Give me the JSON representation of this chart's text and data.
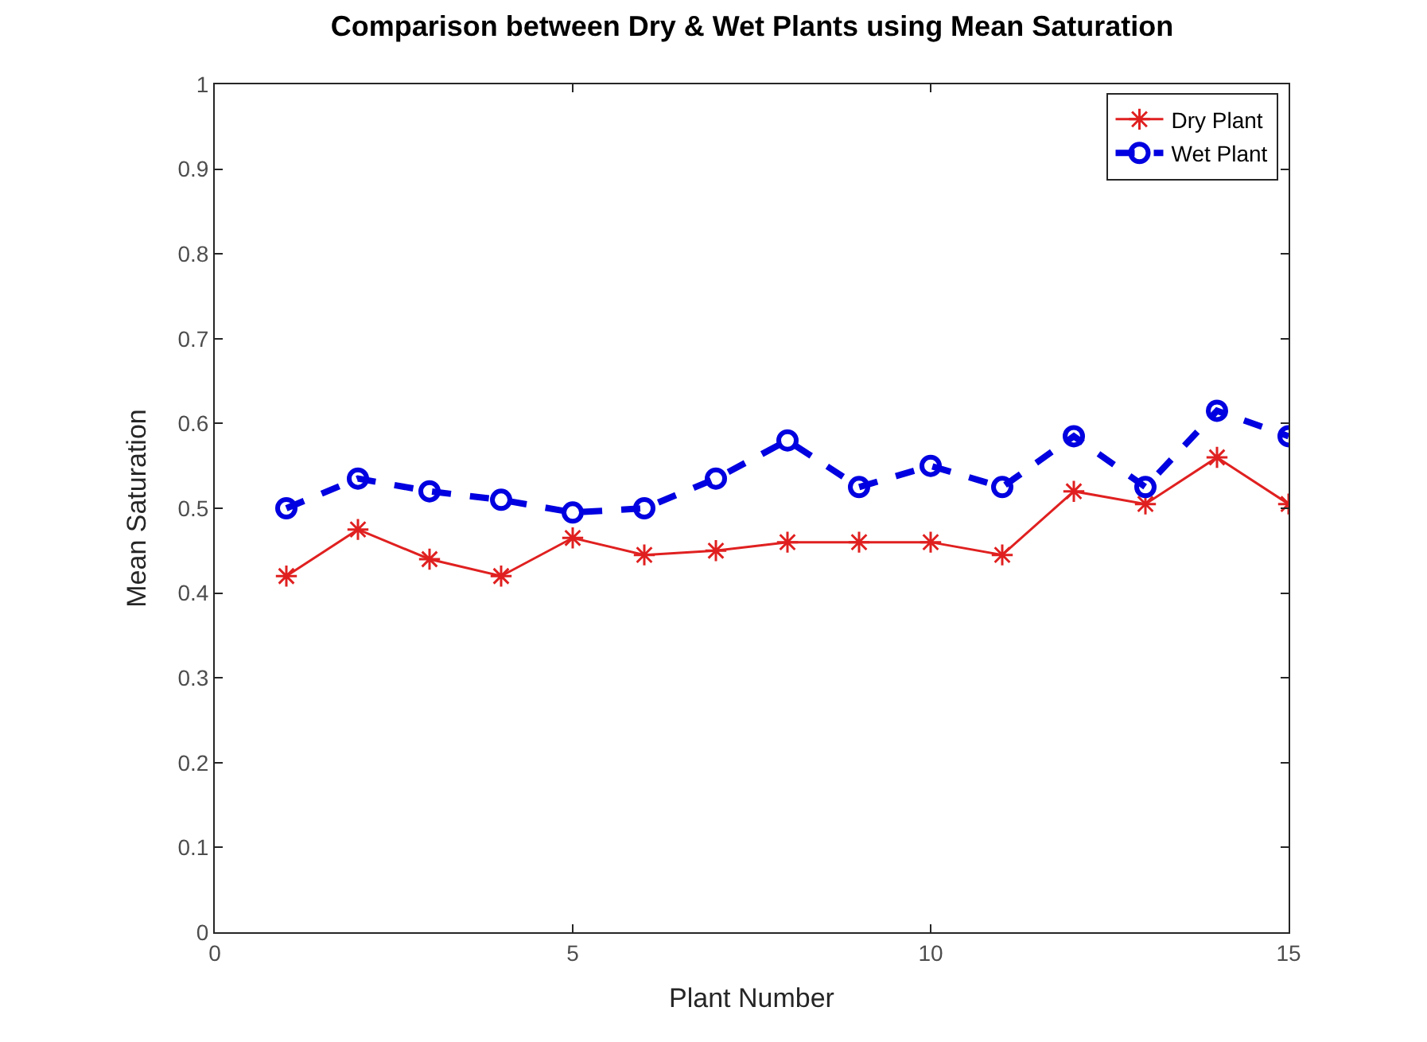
{
  "chart_data": {
    "type": "line",
    "title": "Comparison between Dry & Wet Plants using Mean Saturation",
    "xlabel": "Plant Number",
    "ylabel": "Mean Saturation",
    "x": [
      1,
      2,
      3,
      4,
      5,
      6,
      7,
      8,
      9,
      10,
      11,
      12,
      13,
      14,
      15
    ],
    "series": [
      {
        "name": "Dry Plant",
        "color": "#e02020",
        "values": [
          0.42,
          0.475,
          0.44,
          0.42,
          0.465,
          0.445,
          0.45,
          0.46,
          0.46,
          0.46,
          0.445,
          0.52,
          0.505,
          0.56,
          0.505
        ],
        "marker": "cross",
        "line_style": "solid"
      },
      {
        "name": "Wet Plant",
        "color": "#0000e0",
        "values": [
          0.5,
          0.535,
          0.52,
          0.51,
          0.495,
          0.5,
          0.535,
          0.58,
          0.525,
          0.55,
          0.525,
          0.585,
          0.525,
          0.615,
          0.585
        ],
        "marker": "circle",
        "line_style": "dashed"
      }
    ],
    "xlim": [
      0,
      15
    ],
    "xticks": [
      0,
      5,
      10,
      15
    ],
    "ylim": [
      0,
      1
    ],
    "yticks": [
      0,
      0.1,
      0.2,
      0.3,
      0.4,
      0.5,
      0.6,
      0.7,
      0.8,
      0.9,
      1
    ],
    "legend": "top right"
  }
}
